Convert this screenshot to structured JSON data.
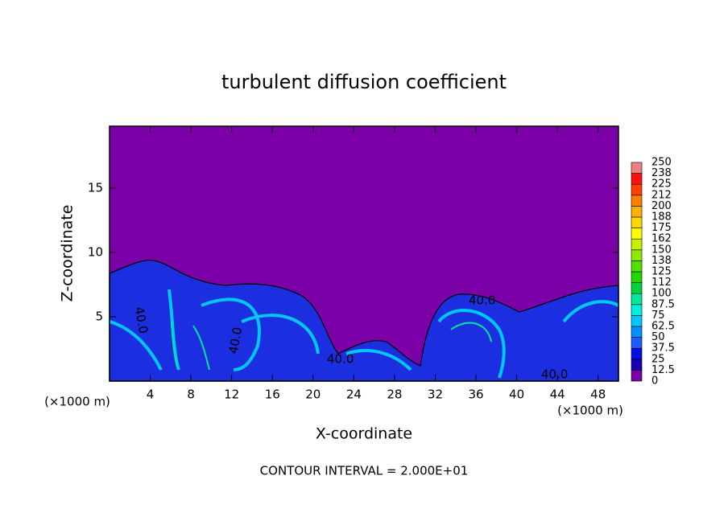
{
  "chart_data": {
    "type": "contour",
    "title": "turbulent diffusion coefficient",
    "x_label": "X-coordinate",
    "y_label": "Z-coordinate",
    "x_unit_label": "(×1000 m)",
    "annotation": "CONTOUR INTERVAL = 2.000E+01",
    "contour_labels": [
      "40.0",
      "40.0",
      "40.0",
      "40.0",
      "40.0"
    ],
    "xlim": [
      0,
      50
    ],
    "xticks": [
      4,
      8,
      12,
      16,
      20,
      24,
      28,
      32,
      36,
      40,
      44,
      48
    ],
    "ylim": [
      0,
      19.8
    ],
    "yticks": [
      5,
      10,
      15
    ],
    "colorbar": {
      "range": [
        0,
        250
      ],
      "levels": [
        0,
        12.5,
        25,
        37.5,
        50,
        62.5,
        75,
        87.5,
        100,
        {
          "value": 112.5,
          "label": "112"
        },
        125,
        {
          "value": 137.5,
          "label": "138"
        },
        150,
        {
          "value": 162.5,
          "label": "162"
        },
        175,
        {
          "value": 187.5,
          "label": "188"
        },
        200,
        {
          "value": 212.5,
          "label": "212"
        },
        225,
        {
          "value": 237.5,
          "label": "238"
        },
        250
      ],
      "colors": [
        "#7b00a8",
        "#1a00b4",
        "#0010e0",
        "#1f5bff",
        "#0090ff",
        "#00c8ff",
        "#00f0e0",
        "#00e89a",
        "#00d040",
        "#20d800",
        "#50e000",
        "#90e800",
        "#c8f000",
        "#ffff00",
        "#ffd800",
        "#ffb000",
        "#ff8000",
        "#ff4000",
        "#ff1010",
        "#f08080"
      ]
    }
  }
}
